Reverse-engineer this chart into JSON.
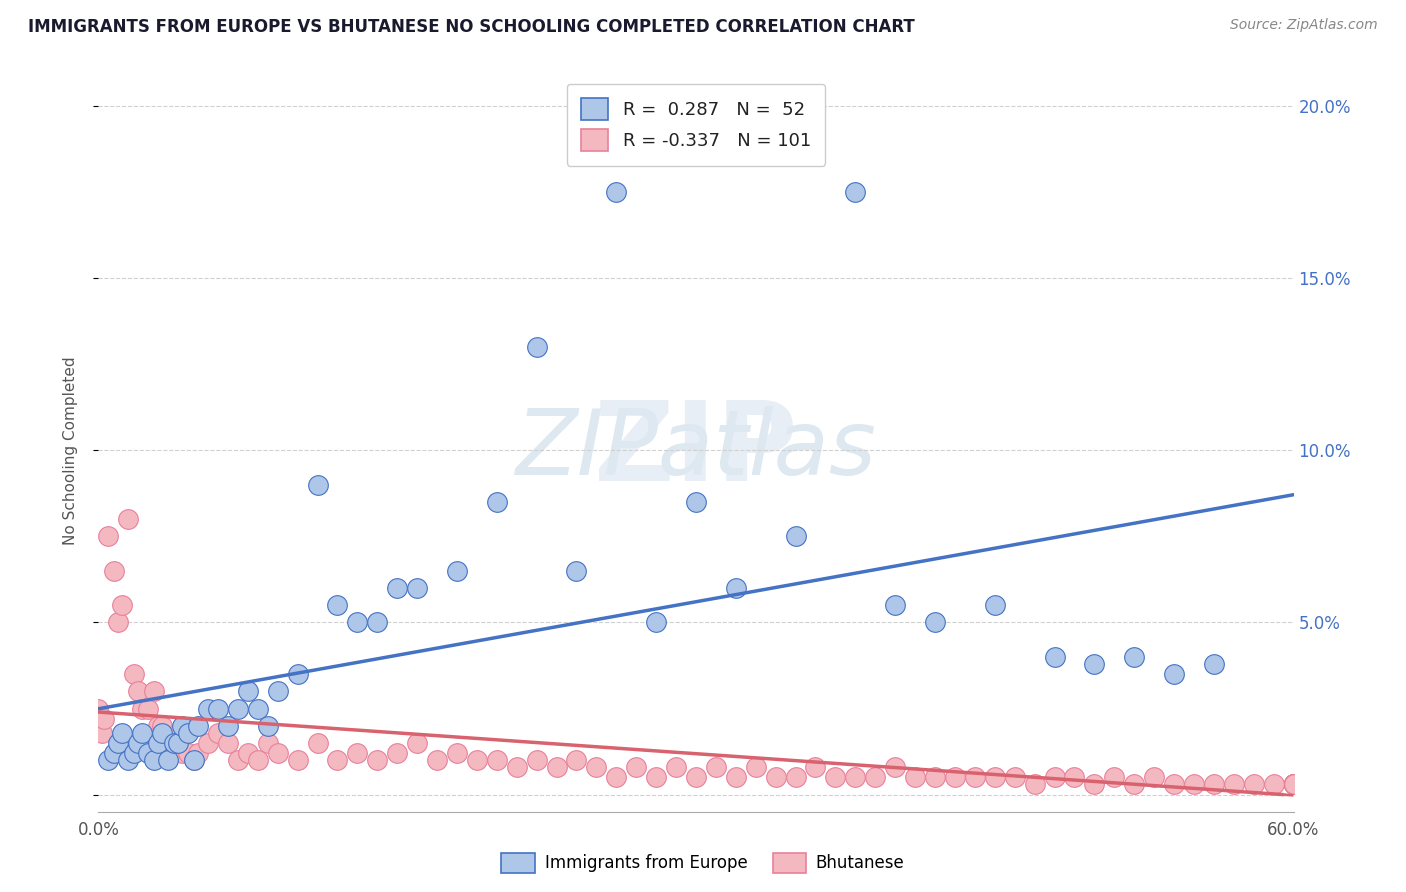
{
  "title": "IMMIGRANTS FROM EUROPE VS BHUTANESE NO SCHOOLING COMPLETED CORRELATION CHART",
  "source": "Source: ZipAtlas.com",
  "ylabel": "No Schooling Completed",
  "xlim": [
    0.0,
    0.6
  ],
  "ylim": [
    -0.005,
    0.205
  ],
  "xtick_positions": [
    0.0,
    0.1,
    0.2,
    0.3,
    0.4,
    0.5,
    0.6
  ],
  "xticklabels": [
    "0.0%",
    "",
    "",
    "",
    "",
    "",
    "60.0%"
  ],
  "ytick_positions": [
    0.0,
    0.05,
    0.1,
    0.15,
    0.2
  ],
  "yticklabels_right": [
    "",
    "5.0%",
    "10.0%",
    "15.0%",
    "20.0%"
  ],
  "legend1_label": "Immigrants from Europe",
  "legend2_label": "Bhutanese",
  "r1": 0.287,
  "n1": 52,
  "r2": -0.337,
  "n2": 101,
  "color_europe": "#aec6e8",
  "color_bhutan": "#f4b8c1",
  "color_europe_border": "#4472c4",
  "color_bhutan_border": "#e8809a",
  "line_europe": "#4472c4",
  "line_bhutan": "#d9626f",
  "europe_x": [
    0.005,
    0.008,
    0.01,
    0.012,
    0.015,
    0.018,
    0.02,
    0.022,
    0.025,
    0.028,
    0.03,
    0.032,
    0.035,
    0.038,
    0.04,
    0.042,
    0.045,
    0.048,
    0.05,
    0.055,
    0.06,
    0.065,
    0.07,
    0.075,
    0.08,
    0.085,
    0.09,
    0.1,
    0.11,
    0.12,
    0.13,
    0.14,
    0.15,
    0.16,
    0.18,
    0.2,
    0.22,
    0.24,
    0.26,
    0.28,
    0.3,
    0.32,
    0.35,
    0.38,
    0.4,
    0.42,
    0.45,
    0.48,
    0.5,
    0.52,
    0.54,
    0.56
  ],
  "europe_y": [
    0.01,
    0.012,
    0.015,
    0.018,
    0.01,
    0.012,
    0.015,
    0.018,
    0.012,
    0.01,
    0.015,
    0.018,
    0.01,
    0.015,
    0.015,
    0.02,
    0.018,
    0.01,
    0.02,
    0.025,
    0.025,
    0.02,
    0.025,
    0.03,
    0.025,
    0.02,
    0.03,
    0.035,
    0.09,
    0.055,
    0.05,
    0.05,
    0.06,
    0.06,
    0.065,
    0.085,
    0.13,
    0.065,
    0.175,
    0.05,
    0.085,
    0.06,
    0.075,
    0.175,
    0.055,
    0.05,
    0.055,
    0.04,
    0.038,
    0.04,
    0.035,
    0.038
  ],
  "bhutan_x": [
    0.0,
    0.0,
    0.002,
    0.003,
    0.005,
    0.008,
    0.01,
    0.012,
    0.015,
    0.018,
    0.02,
    0.022,
    0.025,
    0.028,
    0.03,
    0.032,
    0.035,
    0.038,
    0.04,
    0.042,
    0.045,
    0.048,
    0.05,
    0.055,
    0.06,
    0.065,
    0.07,
    0.075,
    0.08,
    0.085,
    0.09,
    0.1,
    0.11,
    0.12,
    0.13,
    0.14,
    0.15,
    0.16,
    0.17,
    0.18,
    0.19,
    0.2,
    0.21,
    0.22,
    0.23,
    0.24,
    0.25,
    0.26,
    0.27,
    0.28,
    0.29,
    0.3,
    0.31,
    0.32,
    0.33,
    0.34,
    0.35,
    0.36,
    0.37,
    0.38,
    0.39,
    0.4,
    0.41,
    0.42,
    0.43,
    0.44,
    0.45,
    0.46,
    0.47,
    0.48,
    0.49,
    0.5,
    0.51,
    0.52,
    0.53,
    0.54,
    0.55,
    0.56,
    0.57,
    0.58,
    0.59,
    0.6,
    0.6,
    0.6,
    0.6,
    0.6,
    0.6,
    0.6,
    0.6,
    0.6,
    0.6,
    0.6,
    0.6,
    0.6,
    0.6,
    0.6,
    0.6,
    0.6,
    0.6,
    0.6,
    0.6
  ],
  "bhutan_y": [
    0.02,
    0.025,
    0.018,
    0.022,
    0.075,
    0.065,
    0.05,
    0.055,
    0.08,
    0.035,
    0.03,
    0.025,
    0.025,
    0.03,
    0.02,
    0.02,
    0.015,
    0.015,
    0.018,
    0.012,
    0.012,
    0.01,
    0.012,
    0.015,
    0.018,
    0.015,
    0.01,
    0.012,
    0.01,
    0.015,
    0.012,
    0.01,
    0.015,
    0.01,
    0.012,
    0.01,
    0.012,
    0.015,
    0.01,
    0.012,
    0.01,
    0.01,
    0.008,
    0.01,
    0.008,
    0.01,
    0.008,
    0.005,
    0.008,
    0.005,
    0.008,
    0.005,
    0.008,
    0.005,
    0.008,
    0.005,
    0.005,
    0.008,
    0.005,
    0.005,
    0.005,
    0.008,
    0.005,
    0.005,
    0.005,
    0.005,
    0.005,
    0.005,
    0.003,
    0.005,
    0.005,
    0.003,
    0.005,
    0.003,
    0.005,
    0.003,
    0.003,
    0.003,
    0.003,
    0.003,
    0.003,
    0.003,
    0.003,
    0.003,
    0.003,
    0.003,
    0.003,
    0.003,
    0.003,
    0.003,
    0.003,
    0.003,
    0.003,
    0.003,
    0.003,
    0.003,
    0.003,
    0.003,
    0.003,
    0.003,
    0.003
  ]
}
